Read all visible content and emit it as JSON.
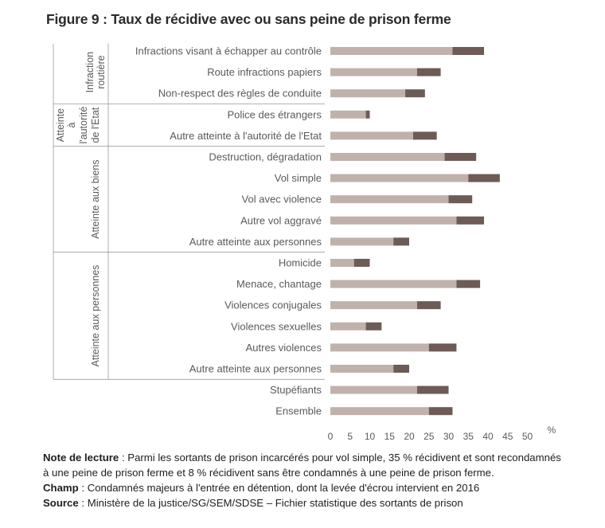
{
  "title": "Figure 9 : Taux de récidive avec ou sans peine de prison ferme",
  "colors": {
    "ferme": "#c0b2ab",
    "sans_ferme": "#6e5b55",
    "axis_text": "#5a5a5a"
  },
  "chart_data": {
    "type": "bar",
    "stacked": true,
    "orientation": "horizontal",
    "categories": [
      "Infractions visant à échapper au contrôle",
      "Route infractions papiers",
      "Non-respect des règles de conduite",
      "Police des étrangers",
      "Autre atteinte à l'autorité de l'Etat",
      "Destruction, dégradation",
      "Vol simple",
      "Vol avec violence",
      "Autre vol aggravé",
      "Autre atteinte aux personnes",
      "Homicide",
      "Menace, chantage",
      "Violences conjugales",
      "Violences sexuelles",
      "Autres violences",
      "Autre atteinte aux personnes",
      "Stupéfiants",
      "Ensemble"
    ],
    "series": [
      {
        "values": [
          31,
          22,
          19,
          9,
          21,
          29,
          35,
          30,
          32,
          16,
          6,
          32,
          22,
          9,
          25,
          16,
          22,
          25
        ]
      },
      {
        "values": [
          8,
          6,
          5,
          1,
          6,
          8,
          8,
          6,
          7,
          4,
          4,
          6,
          6,
          4,
          7,
          4,
          8,
          6
        ]
      }
    ],
    "groups": [
      {
        "label_lines": [
          "Infraction",
          "routière"
        ],
        "rows": [
          0,
          1,
          2
        ]
      },
      {
        "label_lines": [
          "Atteinte",
          "à",
          "l'autorité",
          "de l'Etat"
        ],
        "rows": [
          3,
          4
        ]
      },
      {
        "label_lines": [
          "Atteinte aux biens"
        ],
        "rows": [
          5,
          6,
          7,
          8,
          9
        ]
      },
      {
        "label_lines": [
          "Atteinte aux personnes"
        ],
        "rows": [
          10,
          11,
          12,
          13,
          14,
          15
        ]
      }
    ],
    "xticks": [
      0,
      5,
      10,
      15,
      20,
      25,
      30,
      35,
      40,
      45,
      50
    ],
    "xlim": [
      0,
      50
    ],
    "xunit": "%",
    "grid": false,
    "legend": "none"
  },
  "notes": {
    "lecture_label": "Note de lecture",
    "lecture_text": " : Parmi les sortants de prison incarcérés pour vol simple, 35 % récidivent et sont recondamnés à une peine de prison ferme et 8 % récidivent sans être condamnés à une peine de prison ferme.",
    "champ_label": "Champ",
    "champ_text": " : Condamnés majeurs à l'entrée en détention, dont la levée d'écrou intervient en 2016",
    "source_label": "Source",
    "source_text": " : Ministère de la justice/SG/SEM/SDSE – Fichier statistique des sortants de prison"
  }
}
